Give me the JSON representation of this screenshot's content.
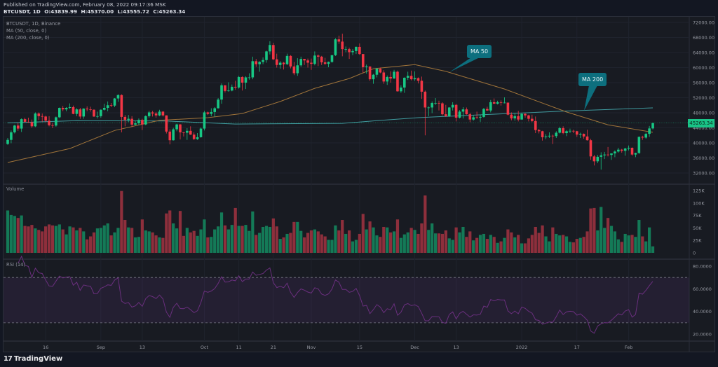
{
  "header": {
    "published": "Published on TradingView.com, February 08, 2022 09:17:36 MSK",
    "symbol": "BTCUSDT, 1D",
    "open": "O:43839.99",
    "high": "H:45370.00",
    "low": "L:43555.72",
    "close": "C:45263.34"
  },
  "legend": [
    "BTCUSDT, 1D, Binance",
    "MA (50, close, 0)",
    "MA (200, close, 0)"
  ],
  "panes": {
    "volume_label": "Volume",
    "rsi_label": "RSI (14)"
  },
  "callouts": {
    "ma50": "MA 50",
    "ma200": "MA 200"
  },
  "last_price_label": "45263.34",
  "footer": {
    "brand": "TradingView",
    "logo_glyph": "17"
  },
  "colors": {
    "up": "#17c784",
    "down": "#f23645",
    "ma50": "#a0743a",
    "ma200": "#3f9a9e",
    "rsi": "#6a2f7e",
    "callout": "#0d6f7e",
    "last_price": "#19c487"
  },
  "chart_data": {
    "type": "candlestick",
    "interval": "1D",
    "first_date": "2021-08-05",
    "first_open": 39700,
    "close": [
      40800,
      42800,
      44600,
      43800,
      46300,
      45600,
      45500,
      44400,
      47800,
      47100,
      47000,
      45900,
      44700,
      44600,
      46800,
      49300,
      48900,
      49300,
      49500,
      47700,
      48900,
      47000,
      49100,
      48900,
      48800,
      47000,
      47100,
      48800,
      49300,
      50000,
      49900,
      51800,
      52700,
      46900,
      46100,
      46400,
      44850,
      45200,
      46100,
      44900,
      47100,
      48100,
      47800,
      47300,
      48300,
      47300,
      43000,
      40700,
      43600,
      44900,
      42800,
      42700,
      43200,
      42200,
      41000,
      41500,
      43800,
      48100,
      47700,
      48200,
      49200,
      51500,
      55300,
      53800,
      53900,
      54900,
      54700,
      57500,
      56000,
      57400,
      57400,
      61700,
      60900,
      61500,
      62000,
      64300,
      66000,
      62200,
      60700,
      61300,
      60900,
      63100,
      60300,
      58500,
      60600,
      62300,
      61900,
      61300,
      61000,
      63200,
      62900,
      61400,
      61000,
      61500,
      63300,
      67500,
      66900,
      64900,
      64900,
      64100,
      64400,
      65500,
      63600,
      60100,
      60300,
      56900,
      58100,
      59700,
      58700,
      56300,
      57500,
      57100,
      58900,
      53700,
      54700,
      57300,
      57800,
      56900,
      57200,
      56500,
      53600,
      49400,
      49400,
      50600,
      50600,
      50500,
      47600,
      47100,
      49400,
      50100,
      46700,
      48300,
      48900,
      47600,
      46200,
      46800,
      46700,
      46900,
      49000,
      48600,
      50800,
      50400,
      50800,
      50700,
      50700,
      47500,
      46500,
      47100,
      46200,
      47700,
      47300,
      46400,
      45800,
      43400,
      43100,
      41500,
      41700,
      41900,
      41800,
      42700,
      43900,
      42600,
      43100,
      43200,
      43100,
      42200,
      42400,
      41700,
      40700,
      36400,
      35100,
      36300,
      36700,
      36900,
      36800,
      37200,
      37700,
      38200,
      37900,
      38500,
      38700,
      36900,
      37300,
      41600,
      41400,
      42400,
      43839.99,
      45263.34
    ],
    "high": [
      41300,
      43300,
      44800,
      45300,
      46500,
      46700,
      46700,
      46200,
      48100,
      48100,
      47800,
      47200,
      47100,
      45300,
      47000,
      49400,
      49800,
      49500,
      50500,
      49900,
      49200,
      49300,
      49200,
      49700,
      49600,
      48900,
      48300,
      48900,
      50400,
      51000,
      50600,
      51900,
      52900,
      52900,
      47400,
      47400,
      47100,
      45900,
      46500,
      46400,
      47300,
      48500,
      48500,
      48200,
      48800,
      48400,
      47300,
      43600,
      44000,
      45100,
      45000,
      42900,
      43900,
      44400,
      42800,
      42600,
      44100,
      48500,
      48300,
      49200,
      49500,
      51900,
      55800,
      55300,
      56100,
      55500,
      56500,
      57800,
      57700,
      57700,
      58500,
      62900,
      62300,
      61700,
      62700,
      64500,
      67000,
      66600,
      63700,
      61700,
      61500,
      63700,
      63300,
      61500,
      62500,
      62900,
      62300,
      62400,
      62400,
      64300,
      63500,
      63100,
      62600,
      61600,
      63300,
      67800,
      68500,
      69000,
      65600,
      65300,
      64900,
      65600,
      66400,
      63600,
      60800,
      60300,
      58300,
      59900,
      60000,
      59300,
      57900,
      59000,
      59400,
      59200,
      55300,
      57400,
      58900,
      59200,
      59000,
      57400,
      57600,
      53900,
      49700,
      51000,
      51900,
      51200,
      50800,
      50100,
      49500,
      50800,
      50300,
      48700,
      49500,
      49400,
      48000,
      47300,
      48300,
      47500,
      49300,
      49600,
      51400,
      51800,
      51200,
      51300,
      52100,
      50700,
      48100,
      47900,
      48500,
      47900,
      47900,
      47500,
      47500,
      47000,
      43700,
      43200,
      42300,
      42800,
      42200,
      43100,
      44300,
      44400,
      43400,
      43800,
      43500,
      43200,
      42700,
      42500,
      43500,
      41100,
      36800,
      36800,
      37500,
      37600,
      38900,
      37200,
      38000,
      38700,
      38400,
      38700,
      39300,
      38800,
      37400,
      41700,
      41900,
      42700,
      44500,
      45370.0
    ],
    "low": [
      39500,
      39900,
      42500,
      43200,
      42900,
      45400,
      45400,
      44000,
      44200,
      46100,
      45600,
      45500,
      44400,
      43900,
      44300,
      46600,
      48400,
      48400,
      49000,
      47600,
      47100,
      46400,
      46400,
      48400,
      48300,
      46900,
      46500,
      46700,
      48600,
      48400,
      49500,
      49500,
      50900,
      42800,
      44400,
      45500,
      44200,
      44700,
      44800,
      43400,
      44700,
      46700,
      47000,
      46700,
      47100,
      47000,
      42500,
      39600,
      40600,
      43100,
      40900,
      41700,
      40800,
      42100,
      40800,
      40800,
      41400,
      43300,
      47400,
      47100,
      46900,
      49100,
      50400,
      53400,
      53600,
      53700,
      54100,
      54400,
      53900,
      54300,
      56800,
      56900,
      60200,
      58900,
      60900,
      61300,
      63500,
      62000,
      60000,
      59700,
      59500,
      60700,
      59800,
      58000,
      57800,
      60200,
      60700,
      60000,
      59400,
      60600,
      60400,
      60700,
      60700,
      60100,
      61300,
      63100,
      66300,
      63000,
      64100,
      62300,
      63300,
      63600,
      63400,
      58600,
      58400,
      56500,
      55700,
      57400,
      58500,
      55700,
      55400,
      56000,
      57000,
      53600,
      53300,
      53300,
      56700,
      56600,
      56500,
      55800,
      51700,
      42000,
      47100,
      47900,
      50100,
      48600,
      47300,
      46900,
      46900,
      48600,
      45700,
      46500,
      46500,
      47500,
      45500,
      45900,
      46400,
      45600,
      46700,
      48500,
      48100,
      50400,
      50200,
      49900,
      50500,
      47300,
      46000,
      45900,
      45700,
      46200,
      46700,
      45700,
      45500,
      42600,
      42500,
      40600,
      41000,
      41300,
      39700,
      41300,
      42500,
      42300,
      41800,
      42600,
      42600,
      41600,
      41300,
      41100,
      40600,
      35500,
      34000,
      34600,
      32900,
      35700,
      36400,
      35500,
      36200,
      37400,
      37400,
      36600,
      38000,
      36600,
      36200,
      37100,
      40800,
      41100,
      41600,
      43555.72
    ],
    "volume_unit": "K",
    "volume": [
      85,
      76,
      74,
      70,
      75,
      54,
      53,
      56,
      49,
      46,
      43,
      53,
      57,
      55,
      54,
      57,
      47,
      37,
      53,
      51,
      45,
      50,
      43,
      27,
      33,
      41,
      49,
      50,
      55,
      59,
      35,
      41,
      50,
      124,
      66,
      51,
      50,
      31,
      32,
      67,
      45,
      43,
      41,
      35,
      31,
      30,
      79,
      85,
      59,
      49,
      84,
      34,
      50,
      41,
      44,
      34,
      47,
      67,
      31,
      32,
      47,
      53,
      81,
      55,
      47,
      56,
      90,
      54,
      54,
      56,
      44,
      83,
      36,
      40,
      52,
      54,
      52,
      69,
      53,
      28,
      31,
      38,
      40,
      62,
      62,
      44,
      31,
      40,
      45,
      47,
      43,
      37,
      33,
      26,
      26,
      55,
      45,
      66,
      38,
      45,
      23,
      26,
      38,
      78,
      47,
      63,
      51,
      35,
      32,
      52,
      51,
      41,
      43,
      67,
      30,
      37,
      41,
      50,
      46,
      38,
      59,
      115,
      46,
      59,
      39,
      39,
      38,
      45,
      29,
      26,
      51,
      41,
      52,
      32,
      43,
      25,
      30,
      36,
      38,
      28,
      36,
      32,
      20,
      23,
      30,
      47,
      41,
      31,
      36,
      19,
      19,
      29,
      36,
      52,
      40,
      55,
      33,
      23,
      51,
      38,
      35,
      36,
      33,
      22,
      21,
      28,
      30,
      32,
      43,
      89,
      90,
      45,
      92,
      50,
      70,
      54,
      43,
      27,
      22,
      38,
      35,
      36,
      32,
      66,
      33,
      23,
      51,
      13
    ],
    "ma50": [
      [
        "2021-08-05",
        34800
      ],
      [
        "2021-08-23",
        38500
      ],
      [
        "2021-09-05",
        43300
      ],
      [
        "2021-09-18",
        46000
      ],
      [
        "2021-10-02",
        46700
      ],
      [
        "2021-10-12",
        47800
      ],
      [
        "2021-10-23",
        51000
      ],
      [
        "2021-11-02",
        54500
      ],
      [
        "2021-11-12",
        57100
      ],
      [
        "2021-11-19",
        59700
      ],
      [
        "2021-12-01",
        60800
      ],
      [
        "2021-12-10",
        59000
      ],
      [
        "2021-12-27",
        54300
      ],
      [
        "2022-01-14",
        48200
      ],
      [
        "2022-01-26",
        44800
      ],
      [
        "2022-02-08",
        42800
      ]
    ],
    "ma200": [
      [
        "2021-08-05",
        45300
      ],
      [
        "2021-08-25",
        45900
      ],
      [
        "2021-09-20",
        45800
      ],
      [
        "2021-10-10",
        45000
      ],
      [
        "2021-11-10",
        45200
      ],
      [
        "2021-11-20",
        45900
      ],
      [
        "2021-12-02",
        46700
      ],
      [
        "2021-12-23",
        47600
      ],
      [
        "2022-01-12",
        48400
      ],
      [
        "2022-02-08",
        49300
      ]
    ],
    "rsi_period": 14,
    "rsi_bands": [
      70,
      30
    ],
    "price_ticks": [
      "72000.00",
      "68000.00",
      "64000.00",
      "60000.00",
      "56000.00",
      "52000.00",
      "48000.00",
      "44000.00",
      "40000.00",
      "36000.00",
      "32000.00"
    ],
    "price_range": [
      31000,
      73500
    ],
    "volume_ticks": [
      [
        "125K",
        125
      ],
      [
        "100K",
        100
      ],
      [
        "75K",
        75
      ],
      [
        "50K",
        50
      ],
      [
        "25K",
        25
      ],
      [
        "0",
        0
      ]
    ],
    "rsi_ticks": [
      "80.0000",
      "60.0000",
      "40.0000",
      "20.0000"
    ],
    "time_ticks": [
      [
        "16",
        "2021-08-16"
      ],
      [
        "Sep",
        "2021-09-01"
      ],
      [
        "13",
        "2021-09-13"
      ],
      [
        "Oct",
        "2021-10-01"
      ],
      [
        "11",
        "2021-10-11"
      ],
      [
        "21",
        "2021-10-21"
      ],
      [
        "Nov",
        "2021-11-01"
      ],
      [
        "15",
        "2021-11-15"
      ],
      [
        "Dec",
        "2021-12-01"
      ],
      [
        "13",
        "2021-12-13"
      ],
      [
        "2022",
        "2022-01-01"
      ],
      [
        "17",
        "2022-01-17"
      ],
      [
        "Feb",
        "2022-02-01"
      ]
    ],
    "grid": true
  }
}
